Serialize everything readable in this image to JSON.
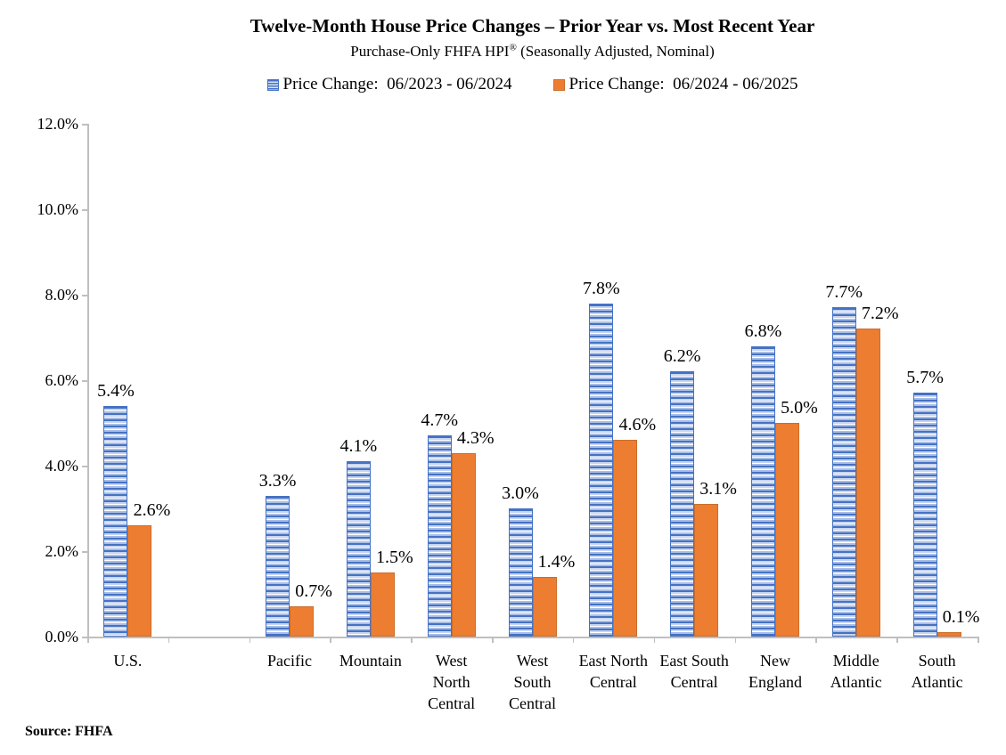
{
  "colors": {
    "series_blue": "#4472C4",
    "series_blue_light": "#C8D5F0",
    "series_orange": "#ED7D31",
    "series_orange_border": "#CB6D2B",
    "axis_line": "#BFBFBF",
    "text": "#000000",
    "background": "#FFFFFF"
  },
  "chart_data": {
    "type": "bar",
    "title": "Twelve-Month House Price Changes – Prior Year vs. Most Recent Year",
    "subtitle_parts": {
      "pre": "Purchase-Only FHFA HPI",
      "sup": "®",
      "post": " (Seasonally Adjusted, Nominal)"
    },
    "source_note": "Source: FHFA",
    "legend_position": "top",
    "grid": false,
    "categories": [
      "U.S.",
      "",
      "Pacific",
      "Mountain",
      "West\nNorth\nCentral",
      "West\nSouth\nCentral",
      "East North\nCentral",
      "East South\nCentral",
      "New\nEngland",
      "Middle\nAtlantic",
      "South\nAtlantic"
    ],
    "series": [
      {
        "name": "Price Change:  06/2023 - 06/2024",
        "style": "blue-horizontal-stripes",
        "values": [
          5.4,
          null,
          3.3,
          4.1,
          4.7,
          3.0,
          7.8,
          6.2,
          6.8,
          7.7,
          5.7
        ],
        "labels": [
          "5.4%",
          "",
          "3.3%",
          "4.1%",
          "4.7%",
          "3.0%",
          "7.8%",
          "6.2%",
          "6.8%",
          "7.7%",
          "5.7%"
        ]
      },
      {
        "name": "Price Change:  06/2024 - 06/2025",
        "style": "orange-solid",
        "values": [
          2.6,
          null,
          0.7,
          1.5,
          4.3,
          1.4,
          4.6,
          3.1,
          5.0,
          7.2,
          0.1
        ],
        "labels": [
          "2.6%",
          "",
          "0.7%",
          "1.5%",
          "4.3%",
          "1.4%",
          "4.6%",
          "3.1%",
          "5.0%",
          "7.2%",
          "0.1%"
        ]
      }
    ],
    "y_axis": {
      "min": 0,
      "max": 12,
      "step": 2,
      "unit": "percent",
      "labels": [
        "0.0%",
        "2.0%",
        "4.0%",
        "6.0%",
        "8.0%",
        "10.0%",
        "12.0%"
      ]
    }
  }
}
